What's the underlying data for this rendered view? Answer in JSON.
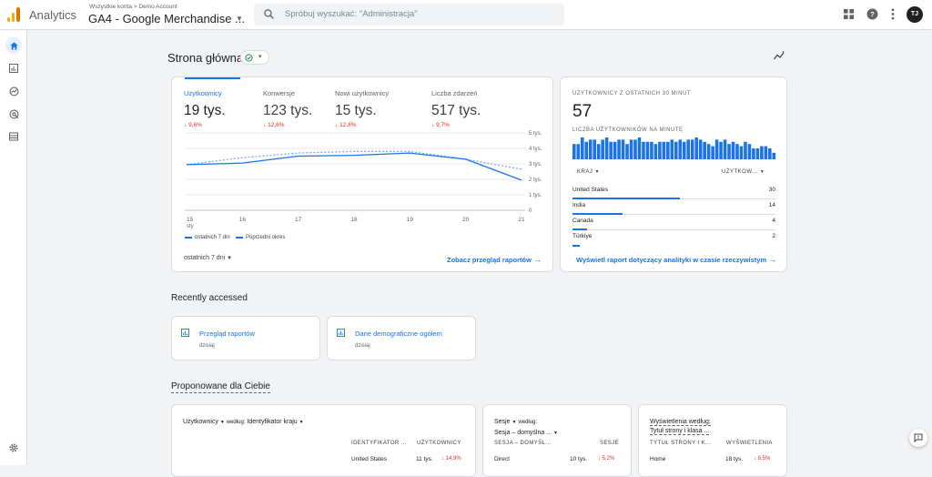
{
  "topbar": {
    "app_name": "Analytics",
    "breadcrumb": "Wszystkie konta > Demo Account",
    "property": "GA4 - Google Merchandise ...",
    "search_placeholder": "Spróbuj wyszukać: \"Administracja\"",
    "avatar_initials": "TJ"
  },
  "colors": {
    "accent": "#1a73e8",
    "negative": "#d93025",
    "logo": [
      "#f9ab00",
      "#e37400"
    ]
  },
  "page": {
    "title": "Strona główna"
  },
  "overview": {
    "kpis": [
      {
        "label": "Użytkownicy",
        "value": "19 tys.",
        "delta": "9,6%"
      },
      {
        "label": "Konwersje",
        "value": "123 tys.",
        "delta": "12,6%"
      },
      {
        "label": "Nowi użytkownicy",
        "value": "15 tys.",
        "delta": "12,8%"
      },
      {
        "label": "Liczba zdarzeń",
        "value": "517 tys.",
        "delta": "9,7%"
      }
    ],
    "range_label": "ostatnich 7 dni",
    "view_link": "Zobacz przegląd raportów"
  },
  "chart_data": {
    "type": "line",
    "x": [
      "15",
      "16",
      "17",
      "18",
      "19",
      "20",
      "21"
    ],
    "x_sublabel": "sty",
    "y_ticks": [
      "5 tys.",
      "4 tys.",
      "3 tys.",
      "2 tys.",
      "1 tys.",
      "0"
    ],
    "ylim": [
      0,
      5000
    ],
    "series": [
      {
        "name": "ostatnich 7 dni",
        "values": [
          2950,
          3050,
          3500,
          3550,
          3700,
          3300,
          1950
        ],
        "style": "solid"
      },
      {
        "name": "Poprzedni okres",
        "values": [
          2950,
          3400,
          3700,
          3800,
          3800,
          3300,
          2650
        ],
        "style": "dashed"
      }
    ],
    "legend": "bottom-left"
  },
  "realtime": {
    "title": "UŻYTKOWNICY Z OSTATNICH 30 MINUT",
    "count": "57",
    "per_minute_label": "LICZBA UŻYTKOWNIKÓW NA MINUTĘ",
    "per_minute": [
      7,
      7,
      10,
      8,
      9,
      9,
      7,
      9,
      10,
      8,
      8,
      9,
      9,
      7,
      9,
      9,
      10,
      8,
      8,
      8,
      7,
      8,
      8,
      8,
      9,
      8,
      9,
      8,
      9,
      9,
      10,
      9,
      8,
      7,
      6,
      9,
      8,
      9,
      7,
      8,
      7,
      6,
      8,
      7,
      5,
      5,
      6,
      6,
      5,
      3
    ],
    "col_country": "KRAJ",
    "col_users": "UŻYTKOW...",
    "rows": [
      {
        "country": "United States",
        "value": "30",
        "share": 1.0
      },
      {
        "country": "India",
        "value": "14",
        "share": 0.467
      },
      {
        "country": "Canada",
        "value": "4",
        "share": 0.133
      },
      {
        "country": "Türkiye",
        "value": "2",
        "share": 0.067
      }
    ],
    "link": "Wyświetl raport dotyczący analityki w czasie rzeczywistym"
  },
  "recent": {
    "title": "Recently accessed",
    "items": [
      {
        "label": "Przegląd raportów",
        "sub": "dzisiaj"
      },
      {
        "label": "Dane demograficzne ogółem",
        "sub": "dzisiaj"
      }
    ]
  },
  "suggested": {
    "title": "Proponowane dla Ciebie",
    "cards": [
      {
        "metric": "Użytkownicy",
        "by": "według:",
        "dimension": "Identyfikator kraju",
        "col1": "IDENTYFIKATOR ...",
        "col2": "UŻYTKOWNICY",
        "row": {
          "name": "United States",
          "value": "11 tys.",
          "delta": "14,9%"
        }
      },
      {
        "metric": "Sesje",
        "by": "według:",
        "dimension": "Sesja – domyślna ...",
        "col1": "SESJA – DOMYŚL...",
        "col2": "SESJE",
        "row": {
          "name": "Direct",
          "value": "10 tys.",
          "delta": "5,2%"
        }
      },
      {
        "metric": "Wyświetlenia według:",
        "dimension": "Tytuł strony i klasa ...",
        "col1": "TYTUŁ STRONY I K...",
        "col2": "WYŚWIETLENIA",
        "row": {
          "name": "Home",
          "value": "18 tys.",
          "delta": "8,5%"
        }
      }
    ]
  }
}
